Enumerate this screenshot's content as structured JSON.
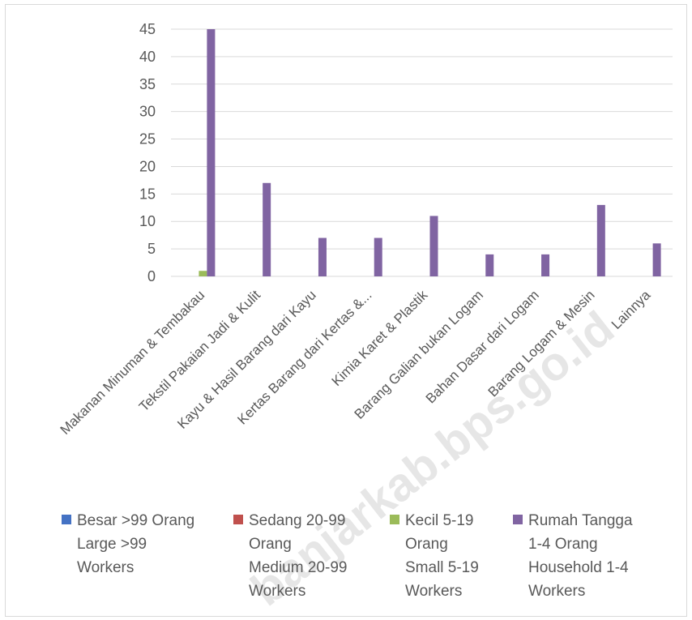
{
  "watermark": "banjarkab.bps.go.id",
  "chart_data": {
    "type": "bar",
    "categories": [
      "Makanan Minuman & Tembakau",
      "Tekstil  Pakaian Jadi  & Kulit",
      "Kayu & Hasil Barang dari Kayu",
      "Kertas  Barang dari Kertas  &...",
      "Kimia  Karet  & Plastik",
      "Barang  Galian bukan Logam",
      "Bahan Dasar dari Logam",
      "Barang Logam & Mesin",
      "Lainnya"
    ],
    "series": [
      {
        "name": "Besar >99 Orang Large >99 Workers",
        "legend_lines": [
          "Besar >99 Orang",
          "Large >99",
          "Workers"
        ],
        "color": "#4472c4",
        "values": [
          0,
          0,
          0,
          0,
          0,
          0,
          0,
          0,
          0
        ]
      },
      {
        "name": "Sedang 20-99 Orang Medium 20-99 Workers",
        "legend_lines": [
          "Sedang 20-99",
          "Orang",
          "Medium 20-99",
          "Workers"
        ],
        "color": "#c0504d",
        "values": [
          0,
          0,
          0,
          0,
          0,
          0,
          0,
          0,
          0
        ]
      },
      {
        "name": "Kecil 5-19 Orang Small 5-19 Workers",
        "legend_lines": [
          "Kecil 5-19",
          "Orang",
          "Small 5-19",
          "Workers"
        ],
        "color": "#9bbb59",
        "values": [
          1,
          0,
          0,
          0,
          0,
          0,
          0,
          0,
          0
        ]
      },
      {
        "name": "Rumah Tangga 1-4 Orang Household 1-4 Workers",
        "legend_lines": [
          "Rumah Tangga",
          "1-4 Orang",
          "Household 1-4",
          "Workers"
        ],
        "color": "#8064a2",
        "values": [
          45,
          17,
          7,
          7,
          11,
          4,
          4,
          13,
          6
        ]
      }
    ],
    "y_ticks": [
      "0",
      "5",
      "10",
      "15",
      "20",
      "25",
      "30",
      "35",
      "40",
      "45"
    ],
    "ylim": [
      0,
      45
    ],
    "grid": true,
    "legend_position": "bottom",
    "title": "",
    "xlabel": "",
    "ylabel": ""
  }
}
